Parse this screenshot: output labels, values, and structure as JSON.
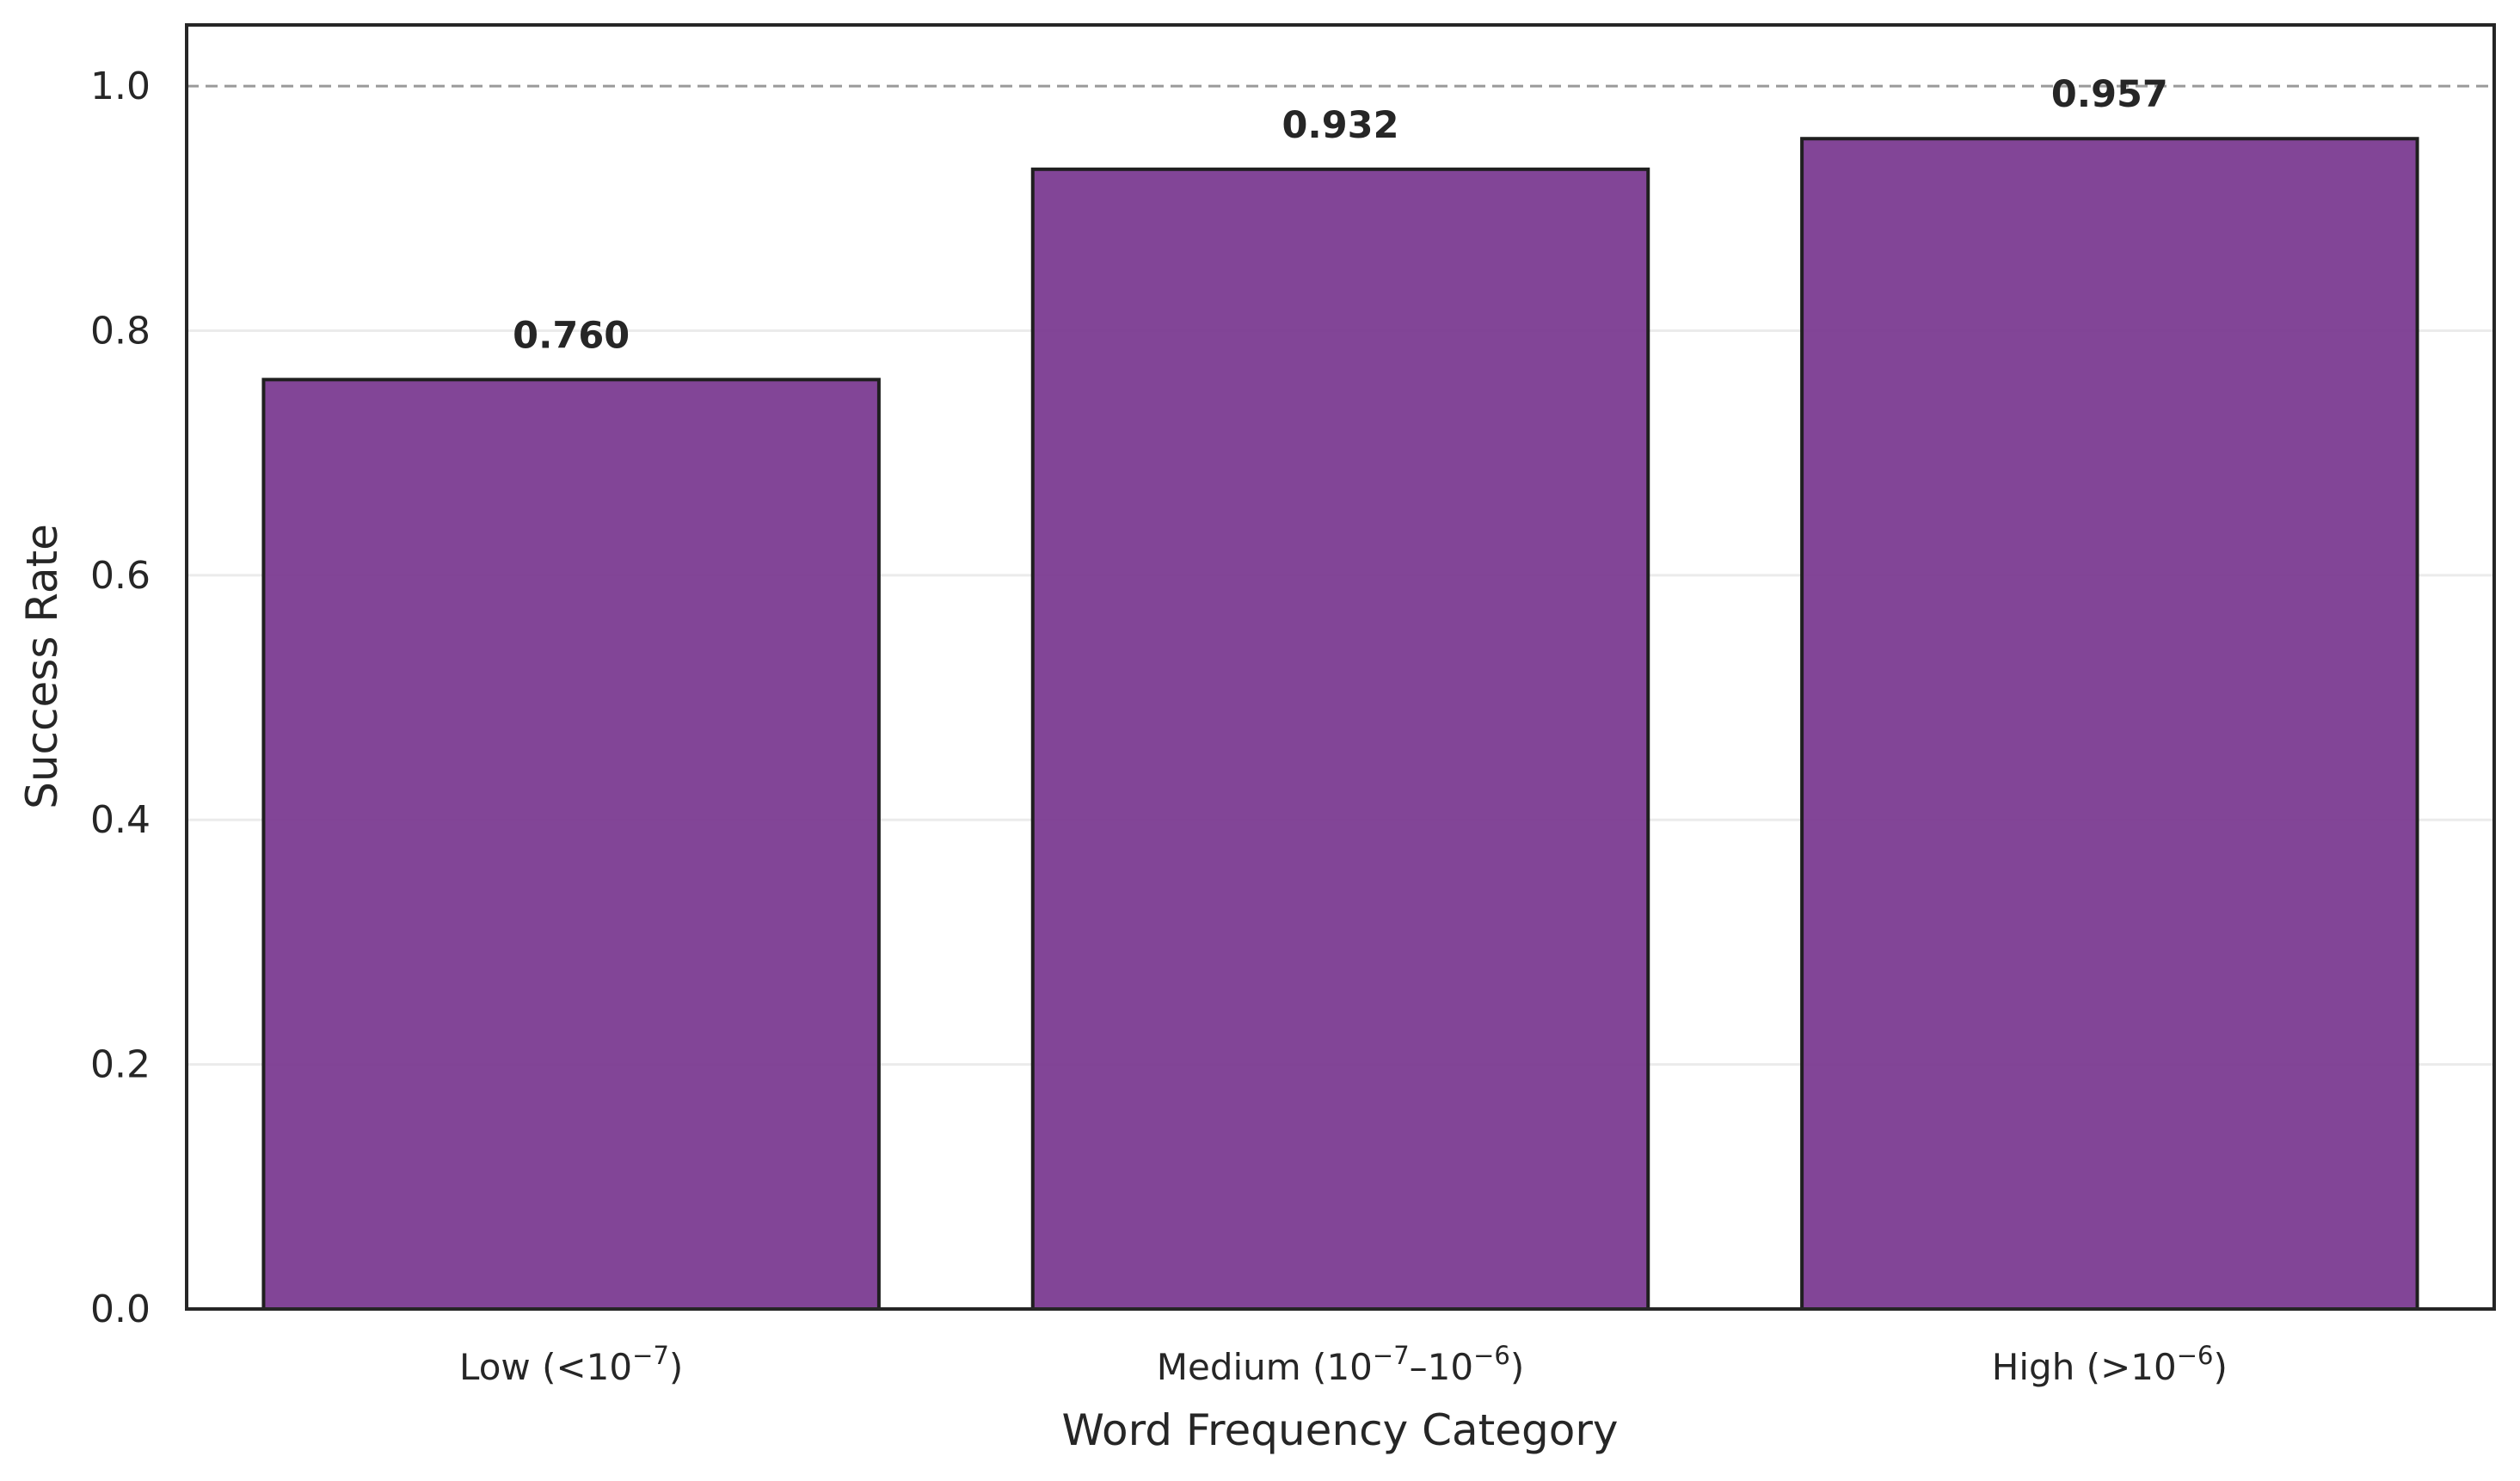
{
  "chart_data": {
    "type": "bar",
    "title": "",
    "xlabel": "Word Frequency Category",
    "ylabel": "Success Rate",
    "ylim": [
      0,
      1.05
    ],
    "yticks": [
      "0.0",
      "0.2",
      "0.4",
      "0.6",
      "0.8",
      "1.0"
    ],
    "categories": [
      "Low (<10⁻⁷)",
      "Medium (10⁻⁷–10⁻⁶)",
      "High (>10⁻⁶)"
    ],
    "categories_parts": [
      {
        "base": "Low (<10",
        "exp": "−7",
        "tail": ")"
      },
      {
        "base": "Medium (10",
        "exp": "−7",
        "mid": "–10",
        "exp2": "−6",
        "tail": ")"
      },
      {
        "base": "High (>10",
        "exp": "−6",
        "tail": ")"
      }
    ],
    "values": [
      0.76,
      0.932,
      0.957
    ],
    "value_labels": [
      "0.760",
      "0.932",
      "0.957"
    ],
    "reference_line": 1.0,
    "grid": "horizontal",
    "bar_color": "#7b3b91",
    "bar_edge_color": "#1f1f1f"
  }
}
